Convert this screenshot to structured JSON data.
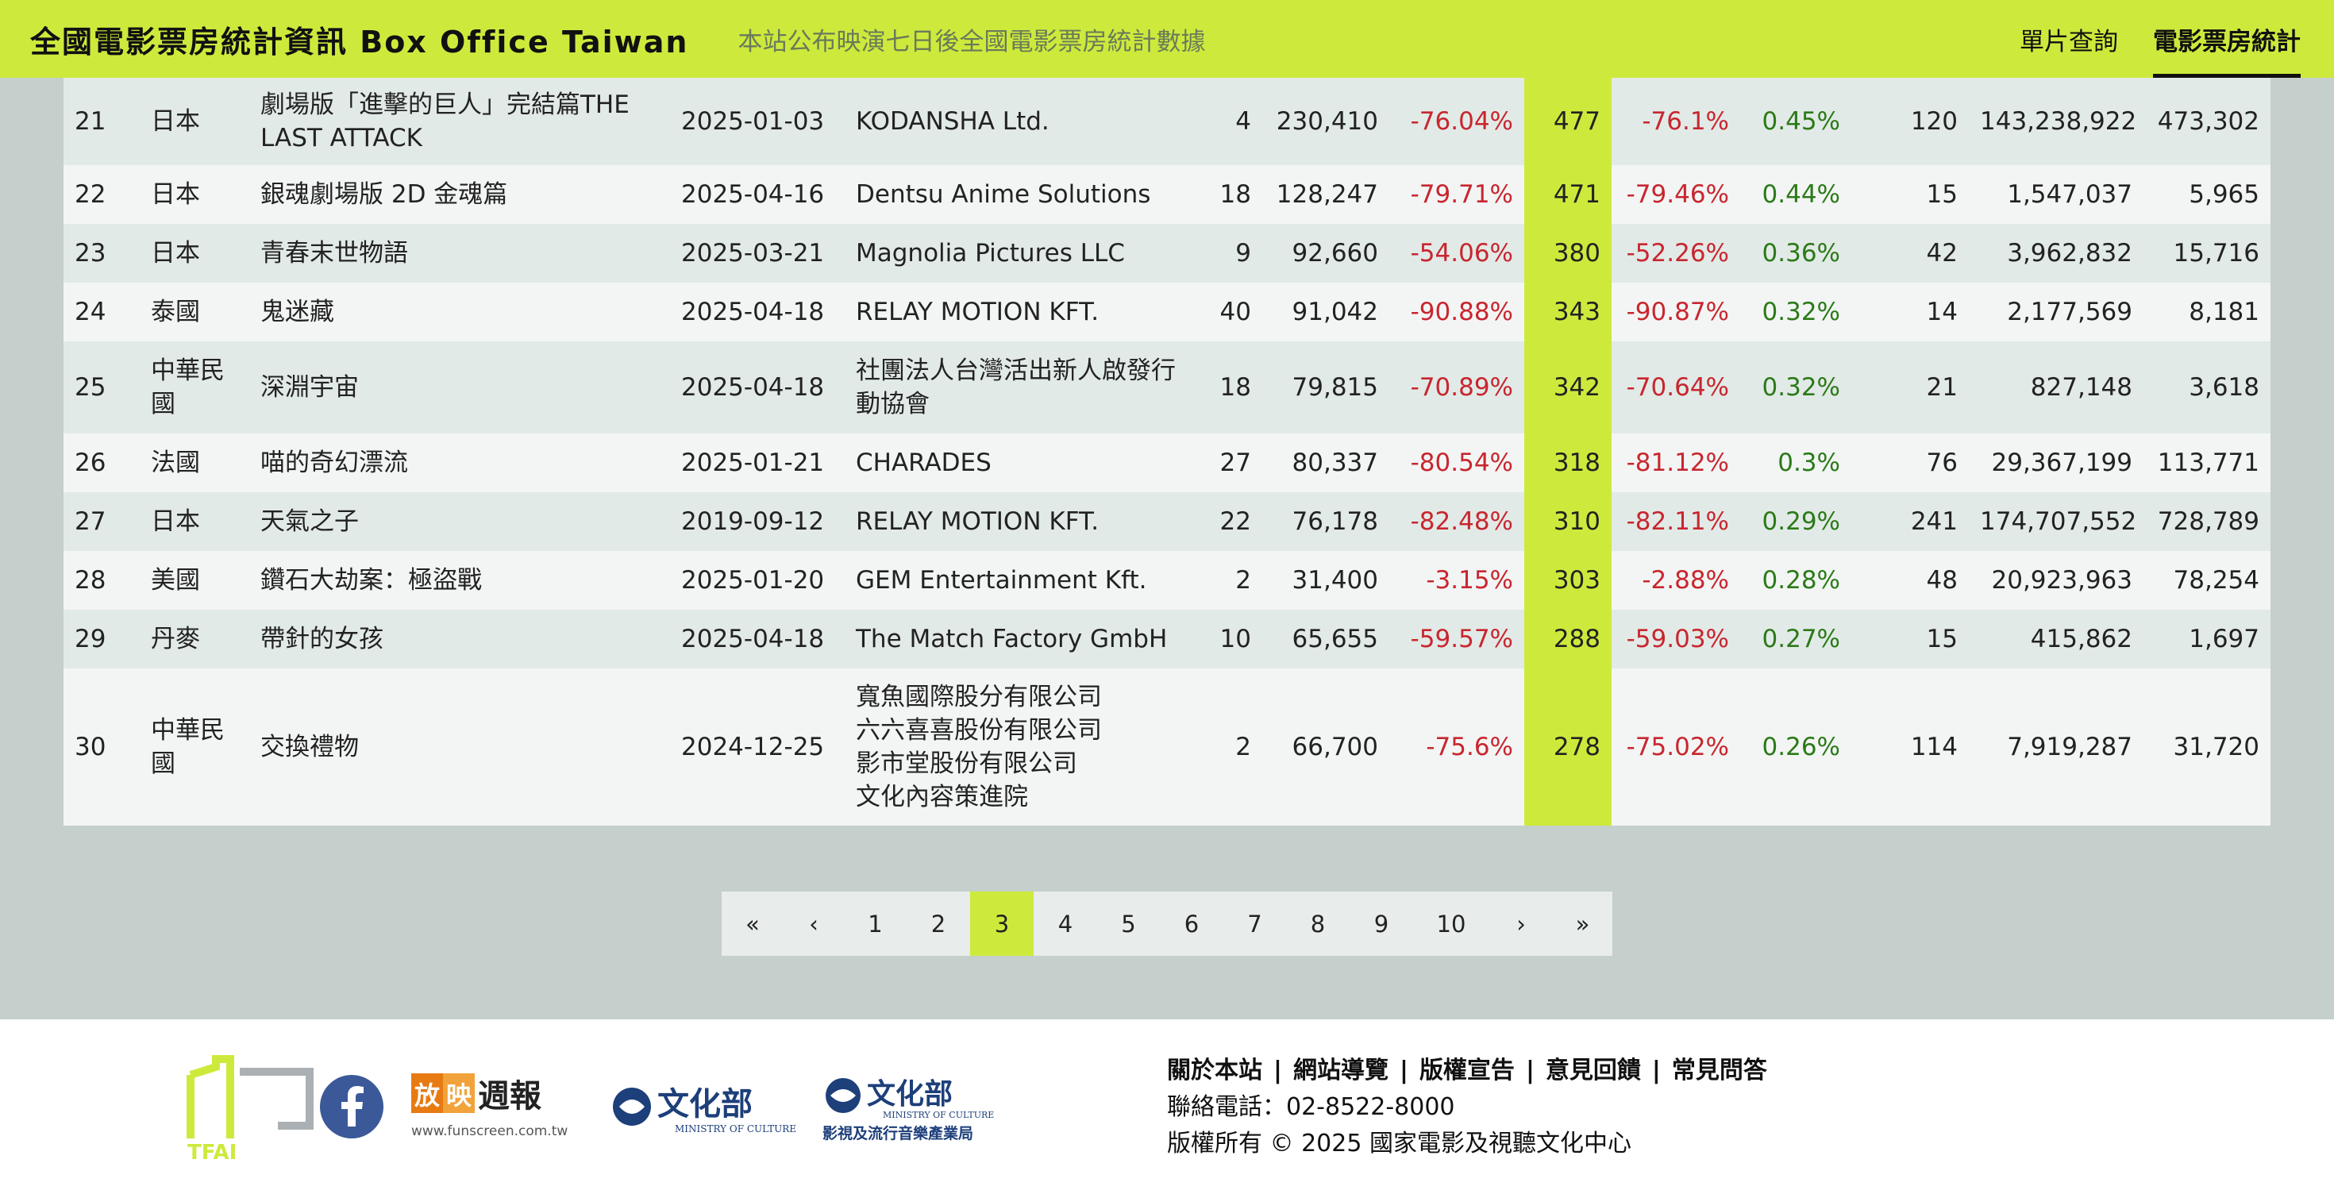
{
  "header": {
    "brand": "全國電影票房統計資訊 Box Office Taiwan",
    "tagline": "本站公布映演七日後全國電影票房統計數據",
    "nav": [
      {
        "label": "單片查詢",
        "active": false
      },
      {
        "label": "電影票房統計",
        "active": true
      }
    ]
  },
  "table": {
    "rows": [
      {
        "rank": "21",
        "country": "日本",
        "title": "劇場版「進擊的巨人」完結篇THE LAST ATTACK",
        "date": "2025-01-03",
        "distributor": "KODANSHA Ltd.",
        "theaters": "4",
        "revenue": "230,410",
        "revenue_change": "-76.04%",
        "tickets": "477",
        "tickets_change": "-76.1%",
        "share": "0.45%",
        "days": "120",
        "total_revenue": "143,238,922",
        "total_tickets": "473,302"
      },
      {
        "rank": "22",
        "country": "日本",
        "title": "銀魂劇場版 2D 金魂篇",
        "date": "2025-04-16",
        "distributor": "Dentsu Anime Solutions",
        "theaters": "18",
        "revenue": "128,247",
        "revenue_change": "-79.71%",
        "tickets": "471",
        "tickets_change": "-79.46%",
        "share": "0.44%",
        "days": "15",
        "total_revenue": "1,547,037",
        "total_tickets": "5,965"
      },
      {
        "rank": "23",
        "country": "日本",
        "title": "青春末世物語",
        "date": "2025-03-21",
        "distributor": "Magnolia Pictures LLC",
        "theaters": "9",
        "revenue": "92,660",
        "revenue_change": "-54.06%",
        "tickets": "380",
        "tickets_change": "-52.26%",
        "share": "0.36%",
        "days": "42",
        "total_revenue": "3,962,832",
        "total_tickets": "15,716"
      },
      {
        "rank": "24",
        "country": "泰國",
        "title": "鬼迷藏",
        "date": "2025-04-18",
        "distributor": "RELAY MOTION KFT.",
        "theaters": "40",
        "revenue": "91,042",
        "revenue_change": "-90.88%",
        "tickets": "343",
        "tickets_change": "-90.87%",
        "share": "0.32%",
        "days": "14",
        "total_revenue": "2,177,569",
        "total_tickets": "8,181"
      },
      {
        "rank": "25",
        "country": "中華民國",
        "title": "深淵宇宙",
        "date": "2025-04-18",
        "distributor": "社團法人台灣活出新人啟發行動協會",
        "theaters": "18",
        "revenue": "79,815",
        "revenue_change": "-70.89%",
        "tickets": "342",
        "tickets_change": "-70.64%",
        "share": "0.32%",
        "days": "21",
        "total_revenue": "827,148",
        "total_tickets": "3,618"
      },
      {
        "rank": "26",
        "country": "法國",
        "title": "喵的奇幻漂流",
        "date": "2025-01-21",
        "distributor": "CHARADES",
        "theaters": "27",
        "revenue": "80,337",
        "revenue_change": "-80.54%",
        "tickets": "318",
        "tickets_change": "-81.12%",
        "share": "0.3%",
        "days": "76",
        "total_revenue": "29,367,199",
        "total_tickets": "113,771"
      },
      {
        "rank": "27",
        "country": "日本",
        "title": "天氣之子",
        "date": "2019-09-12",
        "distributor": "RELAY MOTION KFT.",
        "theaters": "22",
        "revenue": "76,178",
        "revenue_change": "-82.48%",
        "tickets": "310",
        "tickets_change": "-82.11%",
        "share": "0.29%",
        "days": "241",
        "total_revenue": "174,707,552",
        "total_tickets": "728,789"
      },
      {
        "rank": "28",
        "country": "美國",
        "title": "鑽石大劫案：極盜戰",
        "date": "2025-01-20",
        "distributor": "GEM Entertainment Kft.",
        "theaters": "2",
        "revenue": "31,400",
        "revenue_change": "-3.15%",
        "tickets": "303",
        "tickets_change": "-2.88%",
        "share": "0.28%",
        "days": "48",
        "total_revenue": "20,923,963",
        "total_tickets": "78,254"
      },
      {
        "rank": "29",
        "country": "丹麥",
        "title": "帶針的女孩",
        "date": "2025-04-18",
        "distributor": "The Match Factory GmbH",
        "theaters": "10",
        "revenue": "65,655",
        "revenue_change": "-59.57%",
        "tickets": "288",
        "tickets_change": "-59.03%",
        "share": "0.27%",
        "days": "15",
        "total_revenue": "415,862",
        "total_tickets": "1,697"
      },
      {
        "rank": "30",
        "country": "中華民國",
        "title": "交換禮物",
        "date": "2024-12-25",
        "distributor_lines": [
          "寬魚國際股分有限公司",
          "六六喜喜股份有限公司",
          "影市堂股份有限公司",
          "文化內容策進院"
        ],
        "theaters": "2",
        "revenue": "66,700",
        "revenue_change": "-75.6%",
        "tickets": "278",
        "tickets_change": "-75.02%",
        "share": "0.26%",
        "days": "114",
        "total_revenue": "7,919,287",
        "total_tickets": "31,720"
      }
    ]
  },
  "pagination": {
    "first": "«",
    "prev": "‹",
    "pages": [
      "1",
      "2",
      "3",
      "4",
      "5",
      "6",
      "7",
      "8",
      "9",
      "10"
    ],
    "current": "3",
    "next": "›",
    "last": "»"
  },
  "footer": {
    "links": [
      "關於本站",
      "網站導覽",
      "版權宣告",
      "意見回饋",
      "常見問答"
    ],
    "phone": "聯絡電話：02-8522-8000",
    "copyright": "版權所有 © 2025 國家電影及視聽文化中心",
    "logos": {
      "tfai": "TFAI",
      "funscreen_a": "放",
      "funscreen_b": "映",
      "funscreen_c": "週報",
      "funscreen_url": "www.funscreen.com.tw",
      "moc": "文化部",
      "moc_en": "MINISTRY OF CULTURE",
      "moc2": "文化部",
      "moc2_en": "MINISTRY OF CULTURE",
      "moc2_sub": "影視及流行音樂產業局"
    }
  },
  "colors": {
    "accent": "#cdea3c",
    "negative": "#c8262f",
    "positive": "#2b7a18",
    "background": "#c5cfcb"
  }
}
